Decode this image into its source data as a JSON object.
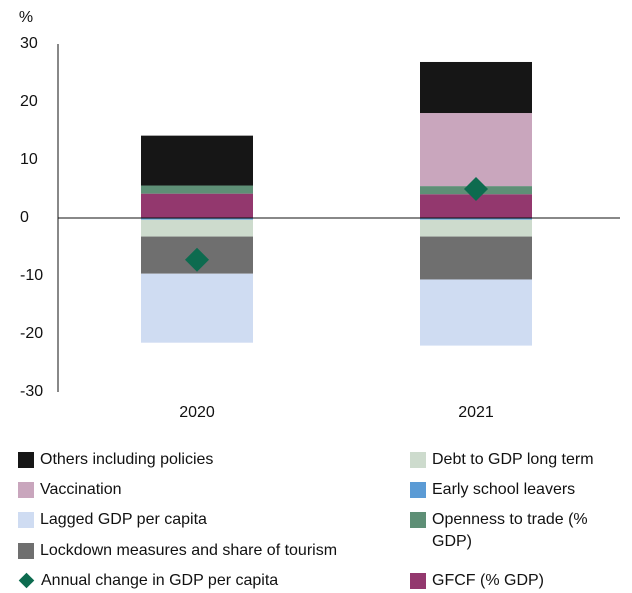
{
  "chart_data": {
    "type": "stacked_bar",
    "y_label": "%",
    "categories": [
      "2020",
      "2021"
    ],
    "ylim": [
      -30,
      30
    ],
    "yticks": [
      -30,
      -20,
      -10,
      0,
      10,
      20,
      30
    ],
    "series": [
      {
        "name": "Early school leavers",
        "color": "#5b9bd5",
        "values": [
          -0.3,
          -0.3
        ]
      },
      {
        "name": "GFCF (% GDP)",
        "color": "#93386e",
        "values": [
          4.2,
          4.1
        ]
      },
      {
        "name": "Openness to trade (% GDP)",
        "color": "#5e8f76",
        "values": [
          1.4,
          1.4
        ]
      },
      {
        "name": "Debt to GDP long term",
        "color": "#cddbcd",
        "values": [
          -2.9,
          -2.9
        ]
      },
      {
        "name": "Vaccination",
        "color": "#c9a6bd",
        "values": [
          0,
          12.6
        ]
      },
      {
        "name": "Lockdown measures and share of tourism",
        "color": "#6f6f6f",
        "values": [
          -6.4,
          -7.4
        ]
      },
      {
        "name": "Others including policies",
        "color": "#161616",
        "values": [
          8.6,
          8.8
        ]
      },
      {
        "name": "Lagged GDP per capita",
        "color": "#cfdcf2",
        "values": [
          -11.9,
          -11.4
        ]
      }
    ],
    "markers": {
      "name": "Annual change in GDP per capita",
      "color": "#0d6b4f",
      "values": [
        -7.2,
        5.0
      ]
    }
  }
}
